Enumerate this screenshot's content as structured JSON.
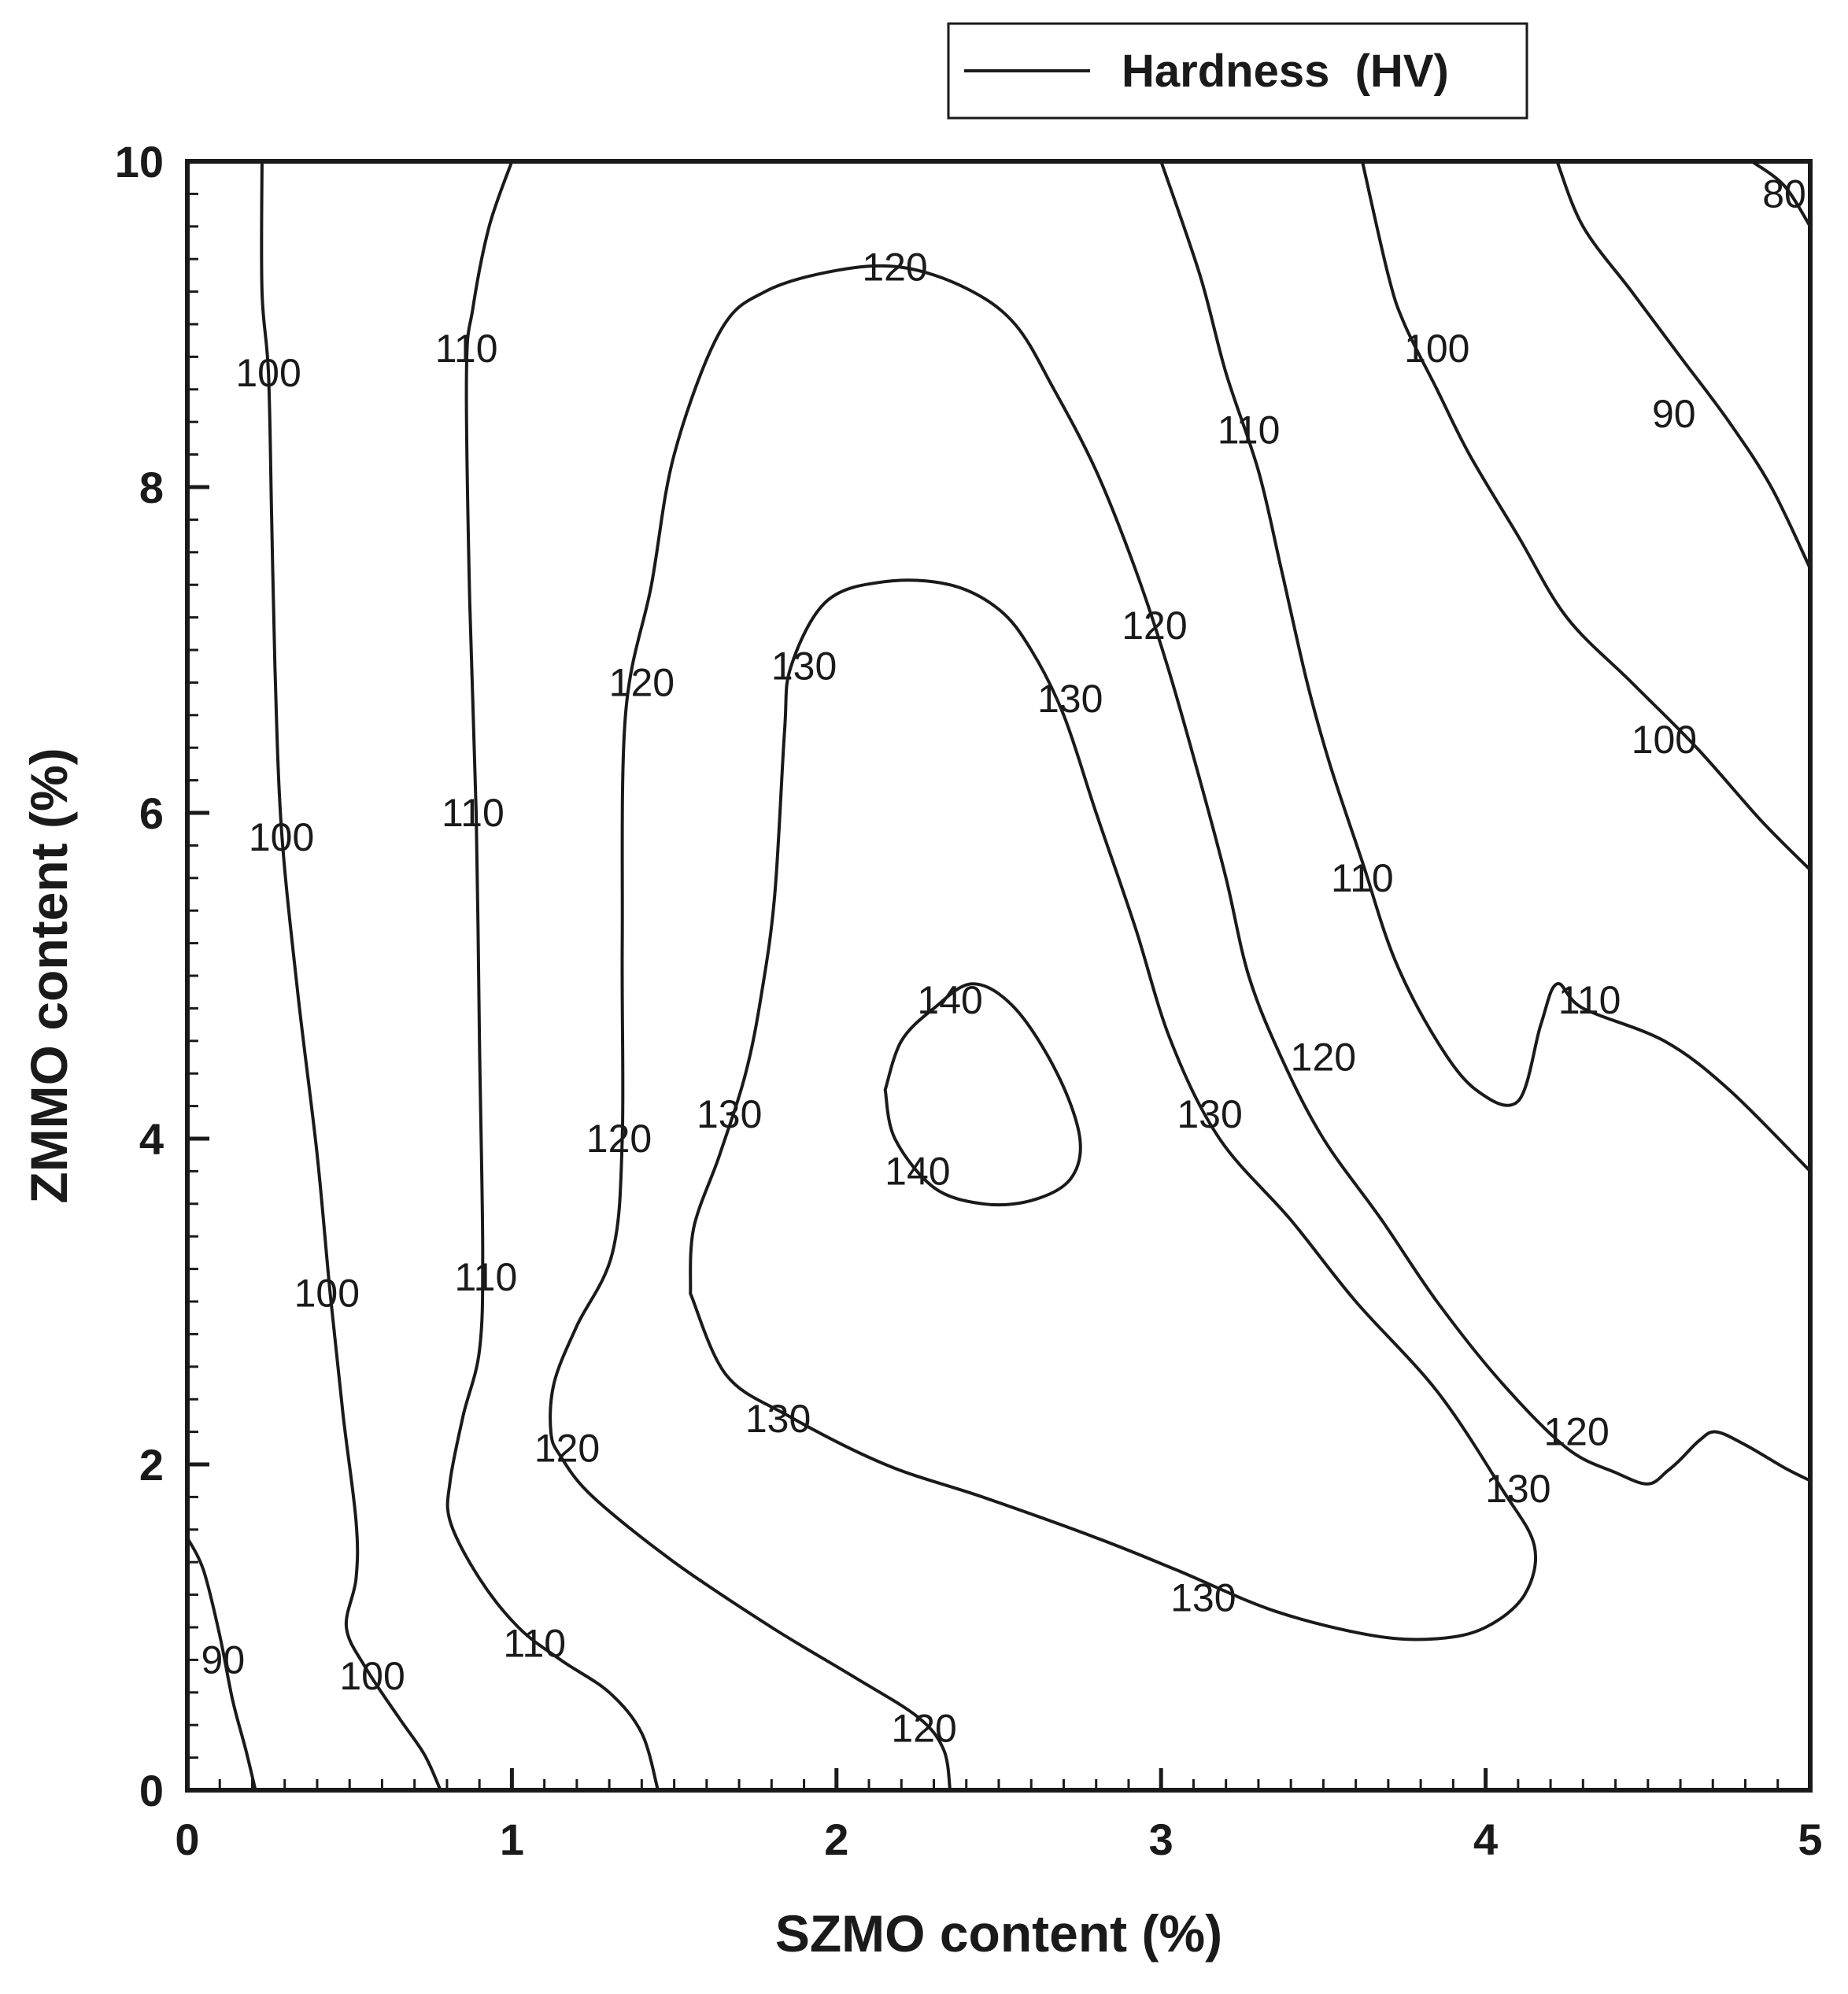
{
  "chart_data": {
    "type": "contour",
    "title": "",
    "xlabel": "SZMO content (%)",
    "ylabel": "ZMMO content (%)",
    "xlim": [
      0,
      5
    ],
    "ylim": [
      0,
      10
    ],
    "x_ticks": [
      0,
      1,
      2,
      3,
      4,
      5
    ],
    "x_tick_labels": [
      "0",
      "1",
      "2",
      "3",
      "4",
      "5"
    ],
    "y_ticks": [
      0,
      2,
      4,
      6,
      8,
      10
    ],
    "y_tick_labels": [
      "0",
      "2",
      "4",
      "6",
      "8",
      "10"
    ],
    "x_minor_step": 0.1,
    "y_minor_step": 0.2,
    "legend": {
      "position": "top-right",
      "label": "Hardness  (HV)"
    },
    "line_color": "#1a1a1a",
    "contours": [
      {
        "level": 90,
        "points": [
          [
            0,
            1.55
          ],
          [
            0.05,
            1.35
          ],
          [
            0.1,
            0.95
          ],
          [
            0.14,
            0.55
          ],
          [
            0.18,
            0.25
          ],
          [
            0.21,
            0
          ]
        ]
      },
      {
        "level": 100,
        "points": [
          [
            0.23,
            10
          ],
          [
            0.23,
            9.2
          ],
          [
            0.25,
            8.7
          ],
          [
            0.26,
            7.8
          ],
          [
            0.27,
            6.9
          ],
          [
            0.29,
            5.9
          ],
          [
            0.34,
            4.9
          ],
          [
            0.4,
            3.9
          ],
          [
            0.44,
            3.05
          ],
          [
            0.48,
            2.3
          ],
          [
            0.52,
            1.65
          ],
          [
            0.52,
            1.3
          ],
          [
            0.49,
            1.0
          ],
          [
            0.55,
            0.75
          ],
          [
            0.65,
            0.45
          ],
          [
            0.73,
            0.22
          ],
          [
            0.78,
            0
          ]
        ]
      },
      {
        "level": 110,
        "points": [
          [
            1.0,
            10
          ],
          [
            0.93,
            9.6
          ],
          [
            0.88,
            9.1
          ],
          [
            0.86,
            8.7
          ],
          [
            0.87,
            7.3
          ],
          [
            0.89,
            6.0
          ],
          [
            0.9,
            4.6
          ],
          [
            0.91,
            3.3
          ],
          [
            0.9,
            2.7
          ],
          [
            0.85,
            2.3
          ],
          [
            0.81,
            1.9
          ],
          [
            0.81,
            1.65
          ],
          [
            0.9,
            1.3
          ],
          [
            1.02,
            1.0
          ],
          [
            1.15,
            0.8
          ],
          [
            1.3,
            0.6
          ],
          [
            1.4,
            0.35
          ],
          [
            1.45,
            0
          ]
        ]
      },
      {
        "level": 120,
        "points": [
          [
            2.35,
            0
          ],
          [
            2.33,
            0.25
          ],
          [
            2.25,
            0.45
          ],
          [
            2.05,
            0.7
          ],
          [
            1.8,
            1.0
          ],
          [
            1.5,
            1.4
          ],
          [
            1.25,
            1.8
          ],
          [
            1.15,
            2.05
          ],
          [
            1.12,
            2.2
          ],
          [
            1.13,
            2.5
          ],
          [
            1.2,
            2.85
          ],
          [
            1.31,
            3.3
          ],
          [
            1.34,
            4.0
          ],
          [
            1.34,
            5.2
          ],
          [
            1.35,
            6.6
          ],
          [
            1.43,
            7.4
          ],
          [
            1.5,
            8.2
          ],
          [
            1.64,
            8.95
          ],
          [
            1.78,
            9.2
          ],
          [
            2.0,
            9.33
          ],
          [
            2.2,
            9.35
          ],
          [
            2.4,
            9.22
          ],
          [
            2.55,
            9.0
          ],
          [
            2.67,
            8.6
          ],
          [
            2.8,
            8.1
          ],
          [
            2.92,
            7.5
          ],
          [
            3.02,
            6.9
          ],
          [
            3.12,
            6.2
          ],
          [
            3.2,
            5.6
          ],
          [
            3.27,
            5.0
          ],
          [
            3.37,
            4.5
          ],
          [
            3.5,
            4.0
          ],
          [
            3.68,
            3.5
          ],
          [
            3.85,
            3.0
          ],
          [
            4.05,
            2.5
          ],
          [
            4.25,
            2.1
          ],
          [
            4.4,
            1.95
          ],
          [
            4.5,
            1.88
          ],
          [
            4.56,
            1.96
          ],
          [
            4.6,
            2.03
          ],
          [
            4.66,
            2.15
          ],
          [
            4.71,
            2.2
          ],
          [
            4.8,
            2.12
          ],
          [
            4.92,
            1.98
          ],
          [
            5.0,
            1.9
          ]
        ]
      },
      {
        "level": 130,
        "points": [
          [
            1.55,
            3.05
          ],
          [
            1.66,
            2.55
          ],
          [
            1.85,
            2.3
          ],
          [
            2.15,
            2.0
          ],
          [
            2.45,
            1.8
          ],
          [
            2.8,
            1.55
          ],
          [
            3.05,
            1.35
          ],
          [
            3.35,
            1.1
          ],
          [
            3.65,
            0.95
          ],
          [
            3.85,
            0.93
          ],
          [
            4.0,
            1.0
          ],
          [
            4.12,
            1.2
          ],
          [
            4.15,
            1.5
          ],
          [
            4.05,
            1.85
          ],
          [
            3.85,
            2.45
          ],
          [
            3.6,
            3.0
          ],
          [
            3.4,
            3.5
          ],
          [
            3.18,
            4.0
          ],
          [
            3.03,
            4.6
          ],
          [
            2.92,
            5.3
          ],
          [
            2.8,
            6.0
          ],
          [
            2.7,
            6.6
          ],
          [
            2.6,
            7.0
          ],
          [
            2.5,
            7.25
          ],
          [
            2.35,
            7.4
          ],
          [
            2.15,
            7.42
          ],
          [
            1.97,
            7.3
          ],
          [
            1.86,
            6.9
          ],
          [
            1.84,
            6.5
          ],
          [
            1.81,
            5.5
          ],
          [
            1.77,
            4.9
          ],
          [
            1.72,
            4.4
          ],
          [
            1.64,
            3.9
          ],
          [
            1.56,
            3.45
          ],
          [
            1.55,
            3.05
          ]
        ]
      },
      {
        "level": 140,
        "points": [
          [
            2.15,
            4.3
          ],
          [
            2.2,
            4.6
          ],
          [
            2.3,
            4.8
          ],
          [
            2.42,
            4.95
          ],
          [
            2.55,
            4.8
          ],
          [
            2.68,
            4.4
          ],
          [
            2.75,
            4.0
          ],
          [
            2.72,
            3.75
          ],
          [
            2.6,
            3.62
          ],
          [
            2.45,
            3.6
          ],
          [
            2.3,
            3.7
          ],
          [
            2.18,
            4.0
          ],
          [
            2.15,
            4.3
          ]
        ]
      },
      {
        "level": 110,
        "points": [
          [
            3.0,
            10
          ],
          [
            3.12,
            9.3
          ],
          [
            3.2,
            8.7
          ],
          [
            3.3,
            8.1
          ],
          [
            3.37,
            7.5
          ],
          [
            3.45,
            6.8
          ],
          [
            3.52,
            6.3
          ],
          [
            3.62,
            5.7
          ],
          [
            3.72,
            5.1
          ],
          [
            3.85,
            4.6
          ],
          [
            3.97,
            4.3
          ],
          [
            4.1,
            4.23
          ],
          [
            4.17,
            4.7
          ],
          [
            4.22,
            4.95
          ],
          [
            4.3,
            4.8
          ],
          [
            4.55,
            4.6
          ],
          [
            4.75,
            4.3
          ],
          [
            5.0,
            3.8
          ]
        ]
      },
      {
        "level": 100,
        "points": [
          [
            3.62,
            10
          ],
          [
            3.7,
            9.3
          ],
          [
            3.75,
            9.0
          ],
          [
            3.85,
            8.6
          ],
          [
            3.95,
            8.2
          ],
          [
            4.1,
            7.7
          ],
          [
            4.25,
            7.2
          ],
          [
            4.45,
            6.8
          ],
          [
            4.65,
            6.4
          ],
          [
            4.85,
            5.95
          ],
          [
            5.0,
            5.65
          ]
        ]
      },
      {
        "level": 90,
        "points": [
          [
            4.22,
            10
          ],
          [
            4.3,
            9.6
          ],
          [
            4.45,
            9.2
          ],
          [
            4.6,
            8.8
          ],
          [
            4.75,
            8.4
          ],
          [
            4.88,
            8.0
          ],
          [
            5.0,
            7.5
          ]
        ]
      },
      {
        "level": 80,
        "points": [
          [
            4.82,
            10
          ],
          [
            4.92,
            9.85
          ],
          [
            5.0,
            9.6
          ]
        ]
      }
    ],
    "contour_labels": [
      {
        "text": "90",
        "x": 0.11,
        "y": 0.8
      },
      {
        "text": "100",
        "x": 0.25,
        "y": 8.7
      },
      {
        "text": "100",
        "x": 0.29,
        "y": 5.85
      },
      {
        "text": "100",
        "x": 0.43,
        "y": 3.05
      },
      {
        "text": "100",
        "x": 0.57,
        "y": 0.7
      },
      {
        "text": "110",
        "x": 0.86,
        "y": 8.85
      },
      {
        "text": "110",
        "x": 0.88,
        "y": 6.0
      },
      {
        "text": "110",
        "x": 0.92,
        "y": 3.15
      },
      {
        "text": "110",
        "x": 1.07,
        "y": 0.9
      },
      {
        "text": "120",
        "x": 1.4,
        "y": 6.8
      },
      {
        "text": "120",
        "x": 1.33,
        "y": 4.0
      },
      {
        "text": "120",
        "x": 1.17,
        "y": 2.1
      },
      {
        "text": "120",
        "x": 2.18,
        "y": 9.35
      },
      {
        "text": "120",
        "x": 2.27,
        "y": 0.38
      },
      {
        "text": "120",
        "x": 2.98,
        "y": 7.15
      },
      {
        "text": "120",
        "x": 3.5,
        "y": 4.5
      },
      {
        "text": "120",
        "x": 4.28,
        "y": 2.2
      },
      {
        "text": "130",
        "x": 1.9,
        "y": 6.9
      },
      {
        "text": "130",
        "x": 1.67,
        "y": 4.15
      },
      {
        "text": "130",
        "x": 1.82,
        "y": 2.28
      },
      {
        "text": "130",
        "x": 2.72,
        "y": 6.7
      },
      {
        "text": "130",
        "x": 3.15,
        "y": 4.15
      },
      {
        "text": "130",
        "x": 3.13,
        "y": 1.18
      },
      {
        "text": "130",
        "x": 4.1,
        "y": 1.85
      },
      {
        "text": "140",
        "x": 2.35,
        "y": 4.85
      },
      {
        "text": "140",
        "x": 2.25,
        "y": 3.8
      },
      {
        "text": "110",
        "x": 3.27,
        "y": 8.35
      },
      {
        "text": "110",
        "x": 3.62,
        "y": 5.6
      },
      {
        "text": "110",
        "x": 4.32,
        "y": 4.85
      },
      {
        "text": "100",
        "x": 3.85,
        "y": 8.85
      },
      {
        "text": "100",
        "x": 4.55,
        "y": 6.45
      },
      {
        "text": "90",
        "x": 4.58,
        "y": 8.45
      },
      {
        "text": "80",
        "x": 4.92,
        "y": 9.8
      }
    ]
  }
}
